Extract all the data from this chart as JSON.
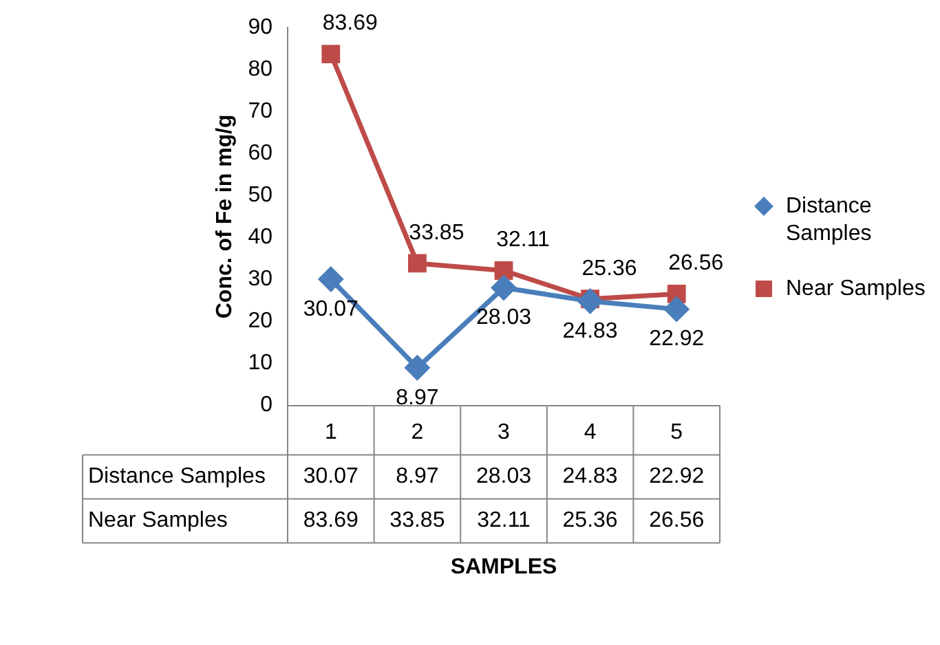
{
  "chart_data": {
    "type": "line",
    "ylabel": "Conc. of Fe in mg/g",
    "categories": [
      "1",
      "2",
      "3",
      "4",
      "5"
    ],
    "series": [
      {
        "name": "Distance Samples",
        "color": "#4a7ebb",
        "marker": "diamond",
        "values": [
          30.07,
          8.97,
          28.03,
          24.83,
          22.92
        ]
      },
      {
        "name": "Near Samples",
        "color": "#be4b48",
        "marker": "square",
        "values": [
          83.69,
          33.85,
          32.11,
          25.36,
          26.56
        ]
      }
    ],
    "annotations": [
      "SAMPLES",
      {
        "text": "30.07",
        "x": "1",
        "y": 30.07
      },
      {
        "text": "8.97",
        "x": "2",
        "y": 8.97
      },
      {
        "text": "28.03",
        "x": "3",
        "y": 28.03
      },
      {
        "text": "24.83",
        "x": "4",
        "y": 24.83
      },
      {
        "text": "22.92",
        "x": "5",
        "y": 22.92
      },
      {
        "text": "83.69",
        "x": "1",
        "y": 83.69
      },
      {
        "text": "33.85",
        "x": "2",
        "y": 33.85
      },
      {
        "text": "32.11",
        "x": "3",
        "y": 32.11
      },
      {
        "text": "25.36",
        "x": "4",
        "y": 25.36
      },
      {
        "text": "26.56",
        "x": "5",
        "y": 26.56
      }
    ],
    "ylim": [
      0,
      90
    ],
    "yticks": [
      0,
      10,
      20,
      30,
      40,
      50,
      60,
      70,
      80,
      90
    ],
    "grid": false,
    "legend": "right",
    "data_labels": true
  }
}
